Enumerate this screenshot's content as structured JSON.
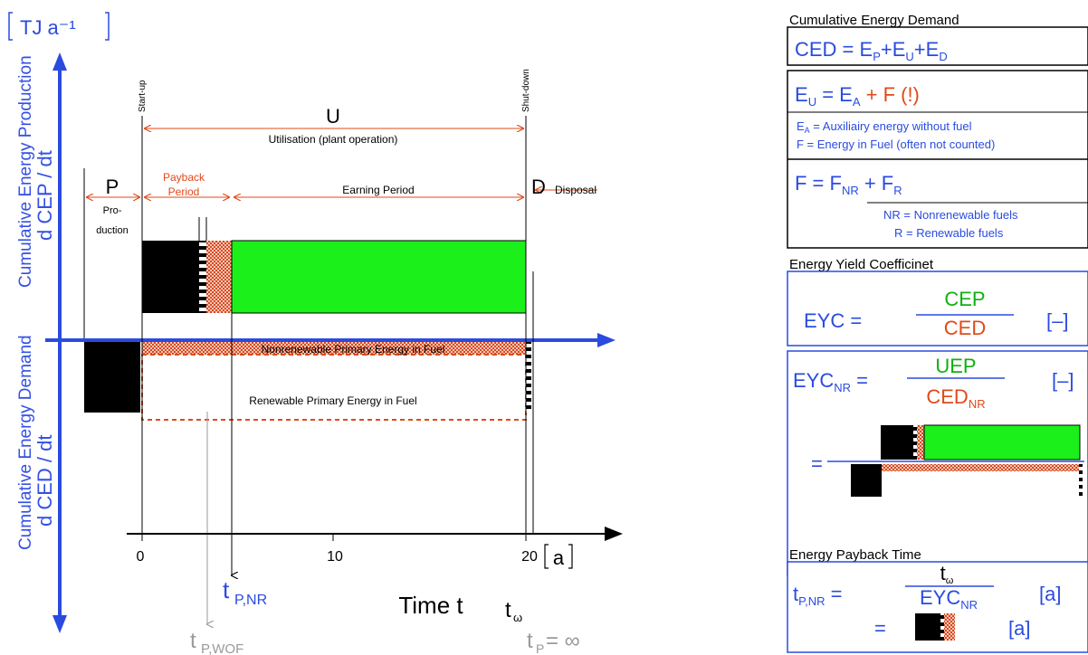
{
  "diagram": {
    "unit_label": "TJ a⁻¹",
    "y_upper_label_1": "Cumulative Energy Production",
    "y_upper_label_2": "d CEP / dt",
    "y_lower_label_1": "Cumulative Energy Demand",
    "y_lower_label_2": "d CED / dt",
    "start_up": "Start-up",
    "shut_down": "Shut-down",
    "U": "U",
    "utilisation": "Utilisation (plant operation)",
    "P": "P",
    "production_1": "Pro-",
    "production_2": "duction",
    "payback_1": "Payback",
    "payback_2": "Period",
    "earning": "Earning Period",
    "D": "D",
    "disposal": "Disposal",
    "nonrenewable_fuel": "Nonrenewable Primary Energy in Fuel",
    "renewable_fuel": "Renewable Primary Energy in Fuel",
    "tick_0": "0",
    "tick_10": "10",
    "tick_20": "20",
    "axis_unit": "a",
    "time_label": "Time t",
    "t_pnr_main": "t",
    "t_pnr_sub": "P,NR",
    "t_pwof_main": "t",
    "t_pwof_sub": "P,WOF",
    "t_omega_main": "t",
    "t_omega_sub": "ω",
    "t_p_main": "t",
    "t_p_sub": "P",
    "t_p_rest": "= ∞"
  },
  "panel": {
    "ced_title": "Cumulative Energy Demand",
    "ced_eq": "CED = EP+EU+ED",
    "eu_eq": "EU = EA + F (!)",
    "ea_note": "EA = Auxiliairy energy without fuel",
    "f_note": "F = Energy in Fuel (often not counted)",
    "f_eq": "F = FNR + FR",
    "nr_note": "NR = Nonrenewable fuels",
    "r_note": "R = Renewable fuels",
    "eyc_title": "Energy Yield Coefficinet",
    "eyc_lhs": "EYC =",
    "cep": "CEP",
    "ced": "CED",
    "dimless": "[–]",
    "eycnr_lhs_main": "EYC",
    "eycnr_lhs_sub": "NR",
    "eycnr_eq_sign": "=",
    "uep": "UEP",
    "cednr_main": "CED",
    "cednr_sub": "NR",
    "eq_sign": "=",
    "ept_title": "Energy Payback Time",
    "tpnr_main": "t",
    "tpnr_sub": "P,NR",
    "tomega_main": "t",
    "tomega_sub": "ω",
    "eycnr2_main": "EYC",
    "eycnr2_sub": "NR",
    "unit_a": "[a]"
  },
  "colors": {
    "axis_blue": "#2a4be0",
    "label_blue": "#3350e6",
    "orange_red": "#e04a1a",
    "green_fill": "#1bf01b",
    "ceb_green": "#10b010",
    "black": "#000000",
    "gray": "#9a9a9a"
  }
}
